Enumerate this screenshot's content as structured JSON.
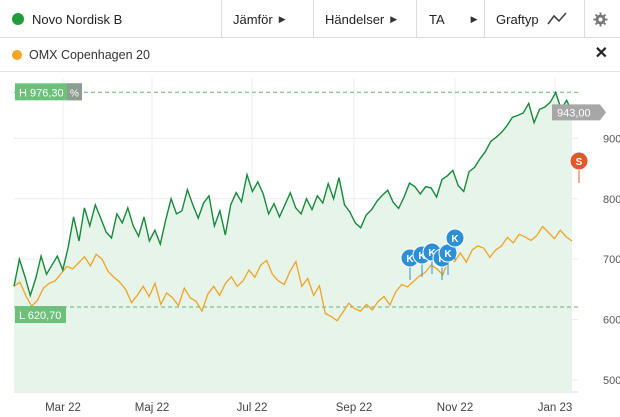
{
  "toolbar": {
    "instrument": "Novo Nordisk B",
    "instrument_color": "#1f9d3a",
    "compare": "Jämför",
    "events": "Händelser",
    "ta": "TA",
    "graph_type": "Graftyp"
  },
  "comparison": {
    "label": "OMX Copenhagen 20",
    "color": "#f5a623"
  },
  "chart_data": {
    "type": "line",
    "title": "",
    "x_labels": [
      "Mar 22",
      "Maj 22",
      "Jul 22",
      "Sep 22",
      "Nov 22",
      "Jan 23"
    ],
    "y_ticks": [
      500,
      600,
      700,
      800,
      900
    ],
    "ylim": [
      480,
      1000
    ],
    "grid": true,
    "high_label": "H 976,30",
    "high_value": 976.3,
    "low_label": "L 620,70",
    "low_value": 620.7,
    "percent_symbol": "%",
    "last_value_label": "943,00",
    "last_value": 943.0,
    "series": [
      {
        "name": "Novo Nordisk B",
        "color": "#17893a",
        "values": [
          655,
          700,
          672,
          640,
          668,
          705,
          675,
          690,
          705,
          682,
          720,
          770,
          730,
          785,
          755,
          790,
          768,
          745,
          735,
          775,
          760,
          785,
          755,
          738,
          770,
          730,
          748,
          725,
          765,
          800,
          775,
          780,
          815,
          790,
          768,
          793,
          805,
          755,
          780,
          740,
          790,
          810,
          795,
          840,
          812,
          828,
          808,
          775,
          792,
          770,
          790,
          810,
          785,
          775,
          800,
          782,
          805,
          793,
          825,
          800,
          835,
          790,
          778,
          760,
          752,
          773,
          782,
          796,
          806,
          814,
          794,
          784,
          803,
          826,
          820,
          808,
          820,
          818,
          803,
          832,
          838,
          847,
          822,
          812,
          845,
          852,
          866,
          878,
          895,
          902,
          910,
          921,
          935,
          938,
          942,
          958,
          926,
          948,
          952,
          960,
          976,
          948,
          963,
          944
        ]
      },
      {
        "name": "OMX Copenhagen 20",
        "color": "#f0a323",
        "values": [
          655,
          662,
          640,
          622,
          632,
          652,
          660,
          664,
          676,
          688,
          684,
          694,
          704,
          689,
          708,
          700,
          680,
          670,
          662,
          650,
          628,
          640,
          655,
          638,
          660,
          625,
          644,
          636,
          623,
          652,
          636,
          630,
          614,
          642,
          655,
          640,
          660,
          671,
          655,
          664,
          682,
          670,
          690,
          698,
          675,
          664,
          658,
          680,
          696,
          655,
          668,
          640,
          656,
          610,
          605,
          598,
          612,
          627,
          618,
          614,
          625,
          616,
          630,
          638,
          624,
          646,
          658,
          654,
          663,
          672,
          678,
          690,
          684,
          674,
          701,
          696,
          710,
          695,
          715,
          722,
          718,
          703,
          715,
          722,
          736,
          727,
          741,
          737,
          731,
          739,
          754,
          744,
          734,
          748,
          737,
          730
        ]
      }
    ],
    "event_markers": [
      {
        "label": "K",
        "color": "#2d8fd5"
      },
      {
        "label": "K",
        "color": "#2d8fd5"
      },
      {
        "label": "K",
        "color": "#2d8fd5"
      },
      {
        "label": "K",
        "color": "#2d8fd5"
      },
      {
        "label": "K",
        "color": "#2d8fd5"
      },
      {
        "label": "K",
        "color": "#2d8fd5"
      },
      {
        "label": "S",
        "color": "#e5572c"
      }
    ]
  }
}
